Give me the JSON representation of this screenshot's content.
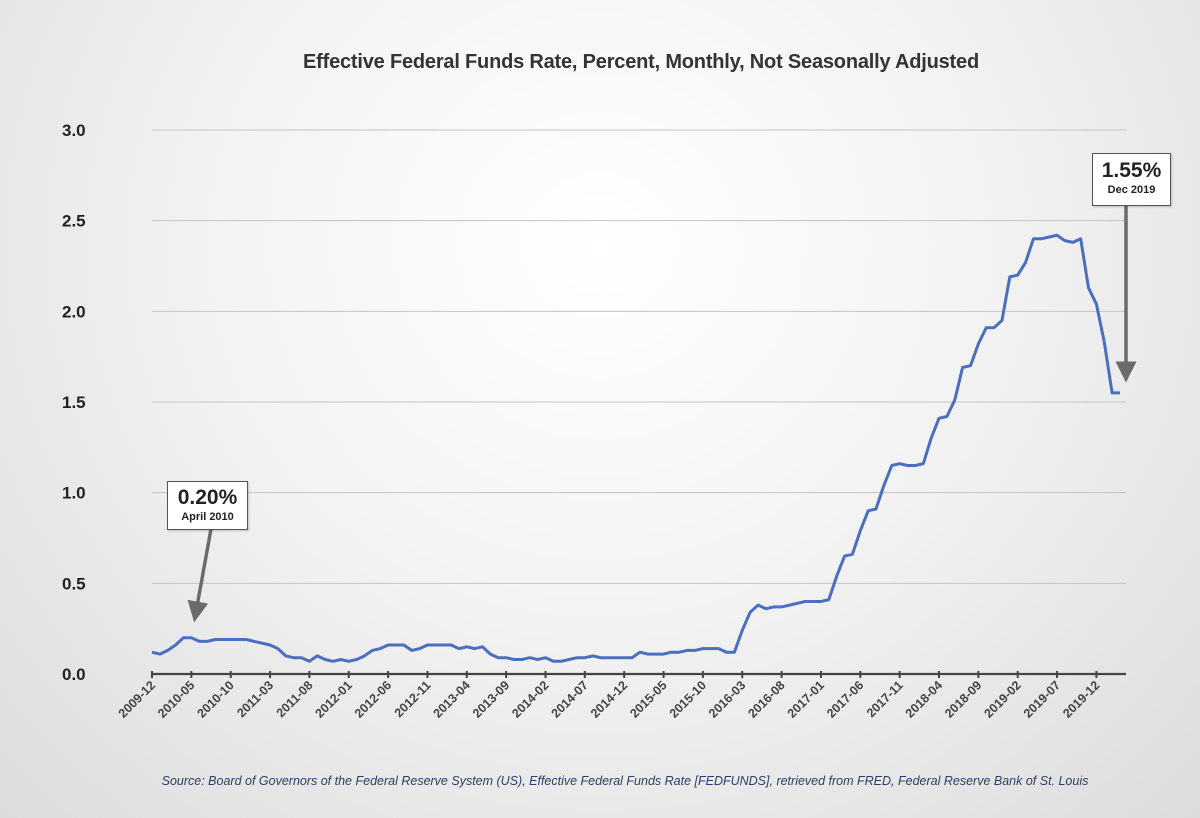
{
  "chart_data": {
    "type": "line",
    "title": "Effective Federal Funds Rate, Percent, Monthly, Not Seasonally Adjusted",
    "xlabel": "",
    "ylabel": "",
    "ylim": [
      0,
      3.0
    ],
    "yticks": [
      "0.0",
      "0.5",
      "1.0",
      "1.5",
      "2.0",
      "2.5",
      "3.0"
    ],
    "grid": true,
    "series_color": "#4a6fbf",
    "xtick_labels": [
      "2009-12",
      "2010-05",
      "2010-10",
      "2011-03",
      "2011-08",
      "2012-01",
      "2012-06",
      "2012-11",
      "2013-04",
      "2013-09",
      "2014-02",
      "2014-07",
      "2014-12",
      "2015-05",
      "2015-10",
      "2016-03",
      "2016-08",
      "2017-01",
      "2017-06",
      "2017-11",
      "2018-04",
      "2018-09",
      "2019-02",
      "2019-07",
      "2019-12"
    ],
    "start_month": "2009-12",
    "series": [
      {
        "name": "FEDFUNDS",
        "values": [
          0.12,
          0.11,
          0.13,
          0.16,
          0.2,
          0.2,
          0.18,
          0.18,
          0.19,
          0.19,
          0.19,
          0.19,
          0.19,
          0.18,
          0.17,
          0.16,
          0.14,
          0.1,
          0.09,
          0.09,
          0.07,
          0.1,
          0.08,
          0.07,
          0.08,
          0.07,
          0.08,
          0.1,
          0.13,
          0.14,
          0.16,
          0.16,
          0.16,
          0.13,
          0.14,
          0.16,
          0.16,
          0.16,
          0.16,
          0.14,
          0.15,
          0.14,
          0.15,
          0.11,
          0.09,
          0.09,
          0.08,
          0.08,
          0.09,
          0.08,
          0.09,
          0.07,
          0.07,
          0.08,
          0.09,
          0.09,
          0.1,
          0.09,
          0.09,
          0.09,
          0.09,
          0.09,
          0.12,
          0.11,
          0.11,
          0.11,
          0.12,
          0.12,
          0.13,
          0.13,
          0.14,
          0.14,
          0.14,
          0.12,
          0.12,
          0.24,
          0.34,
          0.38,
          0.36,
          0.37,
          0.37,
          0.38,
          0.39,
          0.4,
          0.4,
          0.4,
          0.41,
          0.54,
          0.65,
          0.66,
          0.79,
          0.9,
          0.91,
          1.04,
          1.15,
          1.16,
          1.15,
          1.15,
          1.16,
          1.3,
          1.41,
          1.42,
          1.51,
          1.69,
          1.7,
          1.82,
          1.91,
          1.91,
          1.95,
          2.19,
          2.2,
          2.27,
          2.4,
          2.4,
          2.41,
          2.42,
          2.39,
          2.38,
          2.4,
          2.13,
          2.04,
          1.83,
          1.55,
          1.55
        ]
      }
    ],
    "annotations": [
      {
        "value": "0.20%",
        "label": "April 2010",
        "month_index": 4,
        "y": 0.2
      },
      {
        "value": "1.55%",
        "label": "Dec 2019",
        "month_index": 120,
        "y": 1.55
      }
    ]
  },
  "source": "Source: Board of Governors of the Federal Reserve System (US), Effective Federal Funds Rate [FEDFUNDS], retrieved from FRED, Federal Reserve Bank of St. Louis"
}
